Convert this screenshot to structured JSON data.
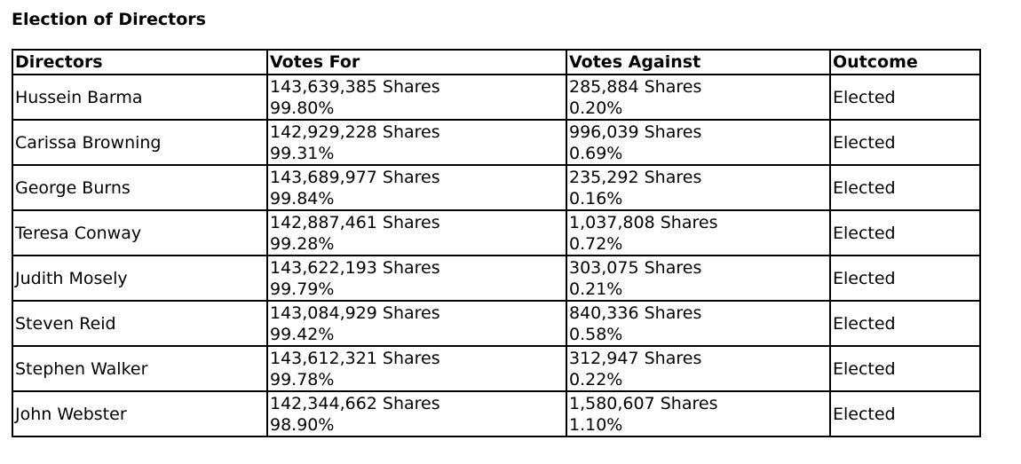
{
  "title": "Election of Directors",
  "table": {
    "headers": [
      "Directors",
      "Votes For",
      "Votes Against",
      "Outcome"
    ],
    "rows": [
      {
        "name": "Hussein Barma",
        "for_shares": "143,639,385 Shares",
        "for_pct": "99.80%",
        "against_shares": "285,884 Shares",
        "against_pct": "0.20%",
        "outcome": "Elected"
      },
      {
        "name": "Carissa Browning",
        "for_shares": "142,929,228 Shares",
        "for_pct": "99.31%",
        "against_shares": "996,039 Shares",
        "against_pct": "0.69%",
        "outcome": "Elected"
      },
      {
        "name": "George Burns",
        "for_shares": "143,689,977 Shares",
        "for_pct": "99.84%",
        "against_shares": "235,292 Shares",
        "against_pct": "0.16%",
        "outcome": "Elected"
      },
      {
        "name": "Teresa Conway",
        "for_shares": "142,887,461 Shares",
        "for_pct": "99.28%",
        "against_shares": "1,037,808 Shares",
        "against_pct": "0.72%",
        "outcome": "Elected"
      },
      {
        "name": "Judith Mosely",
        "for_shares": "143,622,193 Shares",
        "for_pct": "99.79%",
        "against_shares": "303,075 Shares",
        "against_pct": "0.21%",
        "outcome": "Elected"
      },
      {
        "name": "Steven Reid",
        "for_shares": "143,084,929 Shares",
        "for_pct": "99.42%",
        "against_shares": "840,336 Shares",
        "against_pct": "0.58%",
        "outcome": "Elected"
      },
      {
        "name": "Stephen Walker",
        "for_shares": "143,612,321 Shares",
        "for_pct": "99.78%",
        "against_shares": "312,947 Shares",
        "against_pct": "0.22%",
        "outcome": "Elected"
      },
      {
        "name": "John Webster",
        "for_shares": "142,344,662 Shares",
        "for_pct": "98.90%",
        "against_shares": "1,580,607 Shares",
        "against_pct": "1.10%",
        "outcome": "Elected"
      }
    ]
  }
}
